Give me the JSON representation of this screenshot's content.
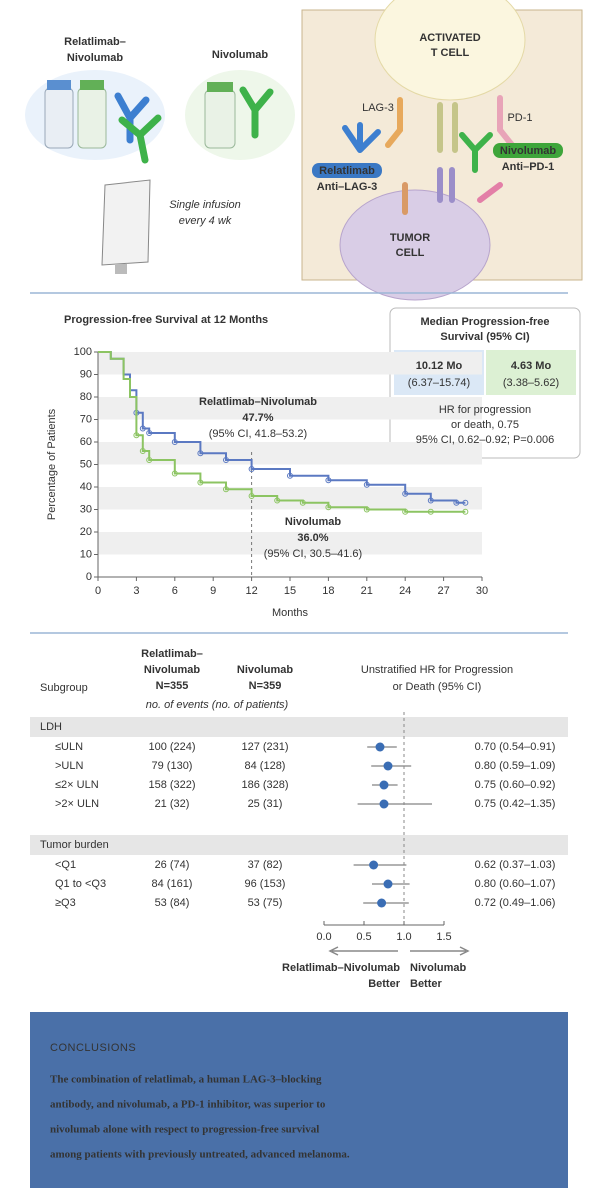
{
  "illustration": {
    "combo_label": [
      "Relatlimab–",
      "Nivolumab"
    ],
    "nivo_label": "Nivolumab",
    "infusion": [
      "Single infusion",
      "every 4 wk"
    ],
    "t_cell": [
      "ACTIVATED",
      "T CELL"
    ],
    "lag3": "LAG-3",
    "pd1": "PD-1",
    "relatlimab_badge": [
      "Relatlimab",
      "Anti–LAG-3"
    ],
    "nivolumab_badge": [
      "Nivolumab",
      "Anti–PD-1"
    ],
    "tumor_cell": [
      "TUMOR",
      "CELL"
    ]
  },
  "chart_data": [
    {
      "type": "line",
      "title": "Progression-free Survival at 12 Months",
      "x_label": "Months",
      "y_label": "Percentage of Patients",
      "xlim": [
        0,
        30
      ],
      "xticks": [
        0,
        3,
        6,
        9,
        12,
        15,
        18,
        21,
        24,
        27,
        30
      ],
      "ylim": [
        0,
        100
      ],
      "yticks": [
        0,
        10,
        20,
        30,
        40,
        50,
        60,
        70,
        80,
        90,
        100
      ],
      "reference_x": 12,
      "series": [
        {
          "name": "Relatlimab–Nivolumab",
          "color": "#5b79c2",
          "label": "47.7%",
          "ci_label": "(95% CI, 41.8–53.2)",
          "x": [
            0,
            1,
            2,
            2.5,
            3,
            3.5,
            4,
            6,
            8,
            10,
            12,
            15,
            18,
            21,
            24,
            26,
            28,
            28.7
          ],
          "values": [
            100,
            97,
            90,
            83,
            73,
            66,
            64,
            60,
            55,
            52,
            48,
            45,
            43,
            41,
            37,
            34,
            33,
            33
          ]
        },
        {
          "name": "Nivolumab",
          "color": "#8cc462",
          "label": "36.0%",
          "ci_label": "(95% CI, 30.5–41.6)",
          "x": [
            0,
            1,
            2,
            2.5,
            3,
            3.5,
            4,
            6,
            8,
            10,
            12,
            14,
            16,
            18,
            21,
            24,
            26,
            28.7
          ],
          "values": [
            100,
            97,
            88,
            80,
            63,
            56,
            52,
            46,
            42,
            39,
            36,
            34,
            33,
            31,
            30,
            29,
            29,
            29
          ]
        }
      ]
    },
    {
      "type": "forest",
      "subgroup_header": "Subgroup",
      "combo_header": [
        "Relatlimab–",
        "Nivolumab",
        "N=355"
      ],
      "nivo_header": [
        "Nivolumab",
        "N=359"
      ],
      "hr_header": [
        "Unstratified HR for Progression",
        "or Death (95% CI)"
      ],
      "events_note": "no. of events (no. of patients)",
      "xlim": [
        0,
        1.5
      ],
      "xticks": [
        {
          "value": 0,
          "label": "0.0"
        },
        {
          "value": 0.5,
          "label": "0.5"
        },
        {
          "value": 1,
          "label": "1.0"
        },
        {
          "value": 1.5,
          "label": "1.5"
        }
      ],
      "reference_x": 1,
      "better_left": [
        "Relatlimab–Nivolumab",
        "Better"
      ],
      "better_right": [
        "Nivolumab",
        "Better"
      ],
      "colors": {
        "combo": "#3a6db4",
        "nivo": "#3e9e35",
        "dot": "#3a6db4"
      },
      "groups": [
        {
          "name": "LDH",
          "rows": [
            {
              "label": "≤ULN",
              "combo": "100 (224)",
              "nivo": "127 (231)",
              "hr": 0.7,
              "lower": 0.54,
              "upper": 0.91,
              "hr_label": "0.70 (0.54–0.91)"
            },
            {
              "label": ">ULN",
              "combo": "79 (130)",
              "nivo": "84 (128)",
              "hr": 0.8,
              "lower": 0.59,
              "upper": 1.09,
              "hr_label": "0.80 (0.59–1.09)"
            },
            {
              "label": "≤2× ULN",
              "combo": "158 (322)",
              "nivo": "186 (328)",
              "hr": 0.75,
              "lower": 0.6,
              "upper": 0.92,
              "hr_label": "0.75 (0.60–0.92)"
            },
            {
              "label": ">2× ULN",
              "combo": "21 (32)",
              "nivo": "25 (31)",
              "hr": 0.75,
              "lower": 0.42,
              "upper": 1.35,
              "hr_label": "0.75 (0.42–1.35)"
            }
          ]
        },
        {
          "name": "Tumor burden",
          "rows": [
            {
              "label": "<Q1",
              "combo": "26 (74)",
              "nivo": "37 (82)",
              "hr": 0.62,
              "lower": 0.37,
              "upper": 1.03,
              "hr_label": "0.62 (0.37–1.03)"
            },
            {
              "label": "Q1 to <Q3",
              "combo": "84 (161)",
              "nivo": "96 (153)",
              "hr": 0.8,
              "lower": 0.6,
              "upper": 1.07,
              "hr_label": "0.80 (0.60–1.07)"
            },
            {
              "label": "≥Q3",
              "combo": "53 (84)",
              "nivo": "53 (75)",
              "hr": 0.72,
              "lower": 0.49,
              "upper": 1.06,
              "hr_label": "0.72 (0.49–1.06)"
            }
          ]
        }
      ]
    }
  ],
  "median_box": {
    "title": [
      "Median Progression-free",
      "Survival (95% CI)"
    ],
    "combo": {
      "value": "10.12 Mo",
      "ci": "(6.37–15.74)"
    },
    "nivo": {
      "value": "4.63 Mo",
      "ci": "(3.38–5.62)"
    },
    "hr": [
      "HR for progression",
      "or death, 0.75",
      "95% CI, 0.62–0.92; P=0.006"
    ]
  },
  "conclusions": {
    "heading": "CONCLUSIONS",
    "lines": [
      "The combination of relatlimab, a human LAG-3–blocking",
      "antibody, and nivolumab, a PD-1 inhibitor, was superior to",
      "nivolumab alone with respect to progression-free survival",
      "among patients with previously untreated, advanced melanoma."
    ]
  }
}
